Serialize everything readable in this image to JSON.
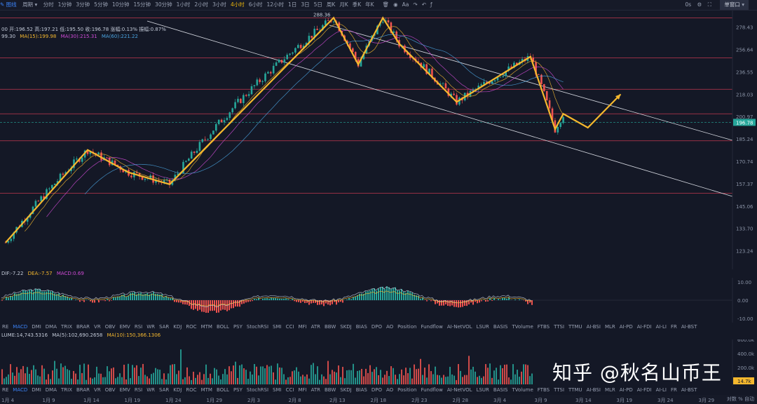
{
  "toolbar": {
    "chart_label": "图线",
    "period_label": "周期",
    "timeframes": [
      "分时",
      "1分钟",
      "3分钟",
      "5分钟",
      "10分钟",
      "15分钟",
      "30分钟",
      "1小时",
      "2小时",
      "3小时",
      "4小时",
      "6小时",
      "12小时",
      "1日",
      "3日",
      "5日",
      "周K",
      "月K",
      "季K",
      "年K"
    ],
    "active_timeframe": "4小时",
    "right_status": "0s",
    "window_button": "单窗口"
  },
  "price_legend": {
    "ohlc": "00 开:196.52 高:197.21 低:195.50 收:196.78 涨幅:0.13% 振幅:0.87%",
    "ma15": "MA(15):199.98",
    "ma30": "MA(30):215.31",
    "ma60": "MA(60):221.22",
    "ma_lead": "99.30"
  },
  "price_axis": {
    "ticks": [
      "278.43",
      "256.64",
      "236.55",
      "218.03",
      "200.97",
      "185.24",
      "170.74",
      "157.37",
      "145.06",
      "133.70",
      "123.24"
    ],
    "current_price": "196.78",
    "peak_label": "288.36"
  },
  "macd_legend": {
    "dif": "DIF:-7.22",
    "dea": "DEA:-7.57",
    "macd": "MACD:0.69"
  },
  "macd_axis": [
    "10.00",
    "0.00",
    "-10.00"
  ],
  "volume_legend": {
    "volume": "LUME:14,743.5316",
    "ma5": "MA(5):102,690.2658",
    "ma10": "MA(10):150,366.1306"
  },
  "volume_axis": [
    "600.0k",
    "400.0k",
    "200.0k",
    "14.7k"
  ],
  "indicators": [
    "RE",
    "MACD",
    "DMI",
    "DMA",
    "TRIX",
    "BRAR",
    "VR",
    "OBV",
    "EMV",
    "RSI",
    "WR",
    "SAR",
    "KDJ",
    "ROC",
    "MTM",
    "BOLL",
    "PSY",
    "StochRSI",
    "SMI",
    "CCI",
    "MFI",
    "ATR",
    "BBW",
    "SKDJ",
    "BIAS",
    "DPO",
    "AO",
    "Position",
    "Fundflow",
    "AI-NetVOL",
    "LSUR",
    "BASIS",
    "TVolume",
    "FTBS",
    "TTSI",
    "TTMU",
    "AI-BSI",
    "MLR",
    "AI-PD",
    "AI-FDI",
    "AI-LI",
    "FR",
    "AI-BST"
  ],
  "x_axis": [
    "1月 4",
    "1月 9",
    "1月 14",
    "1月 19",
    "1月 24",
    "1月 29",
    "2月 3",
    "2月 8",
    "2月 13",
    "2月 18",
    "2月 23",
    "2月 28",
    "3月 4",
    "3月 9",
    "3月 14",
    "3月 19",
    "3月 24",
    "3月 29",
    "4月 3"
  ],
  "bottom_right": "对数  %  自动",
  "watermark": "知乎 @秋名山币王",
  "colors": {
    "background": "#141826",
    "up": "#26a69a",
    "down": "#ef5350",
    "annotation": "#f5b82e",
    "hline": "#c0394f",
    "channel": "#d8dbe3"
  },
  "chart_data": {
    "type": "candlestick",
    "ylim": [
      120,
      295
    ],
    "y_scale": "log",
    "annotation_zigzag": [
      [
        "1月 4",
        127
      ],
      [
        "1月 14",
        178
      ],
      [
        "1月 19",
        164
      ],
      [
        "1月 24",
        157
      ],
      [
        "2月 13",
        288
      ],
      [
        "2月 16",
        243
      ],
      [
        "2月 19",
        288
      ],
      [
        "2月 21",
        262
      ],
      [
        "2月 28",
        212
      ],
      [
        "3月 8",
        250
      ],
      [
        "3月 11",
        192
      ],
      [
        "3月 12",
        203
      ],
      [
        "3月 15",
        193
      ],
      [
        "3月 19",
        218
      ]
    ],
    "horizontal_levels": [
      288,
      249,
      222,
      203,
      184,
      152
    ],
    "current_price": 196.78
  }
}
